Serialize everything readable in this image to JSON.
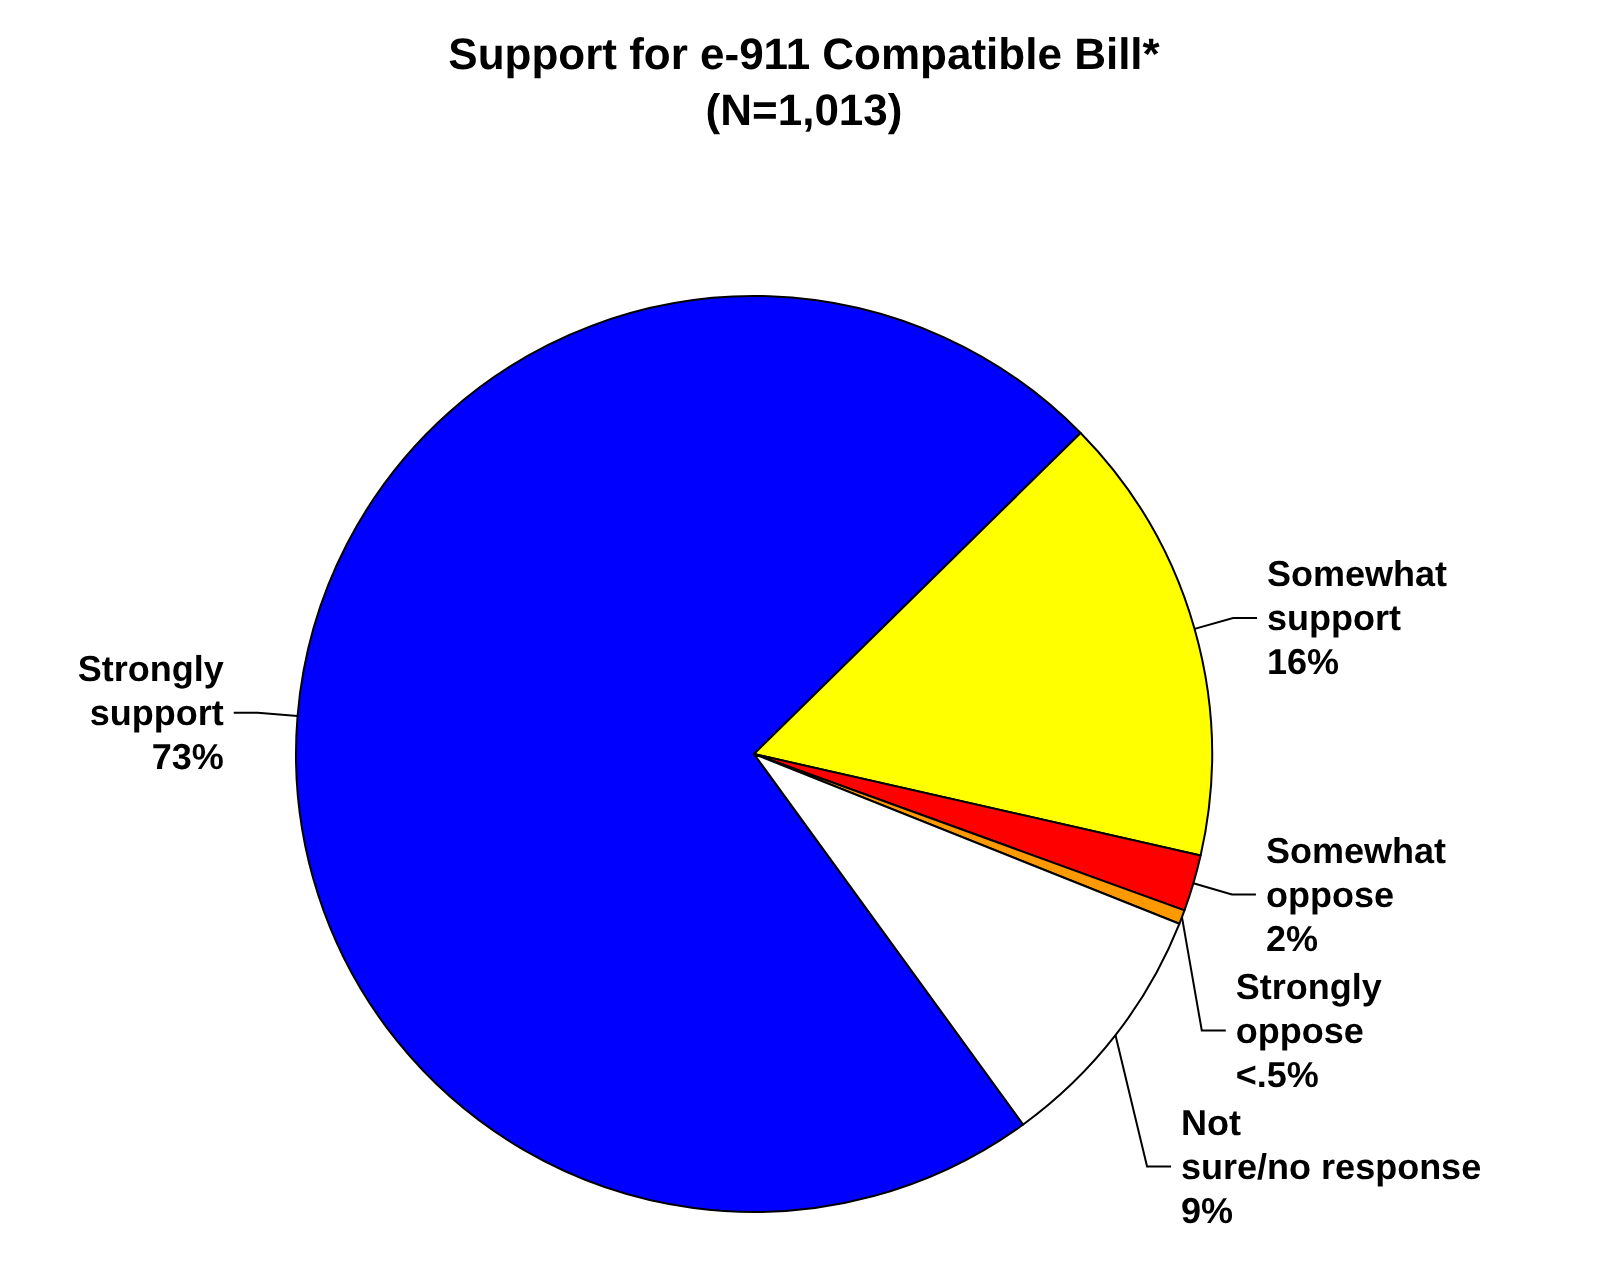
{
  "chart_data": {
    "type": "pie",
    "title": "Support for e-911 Compatible Bill*\n(N=1,013)",
    "categories": [
      "Strongly support",
      "Somewhat support",
      "Somewhat oppose",
      "Strongly oppose",
      "Not sure/no response"
    ],
    "values": [
      73,
      16,
      2,
      0.5,
      9
    ],
    "value_labels": [
      "73%",
      "16%",
      "2%",
      "<.5%",
      "9%"
    ],
    "colors": [
      "#0000ff",
      "#ffff00",
      "#ff0000",
      "#ff9900",
      "#ffffff"
    ],
    "legend": false
  }
}
